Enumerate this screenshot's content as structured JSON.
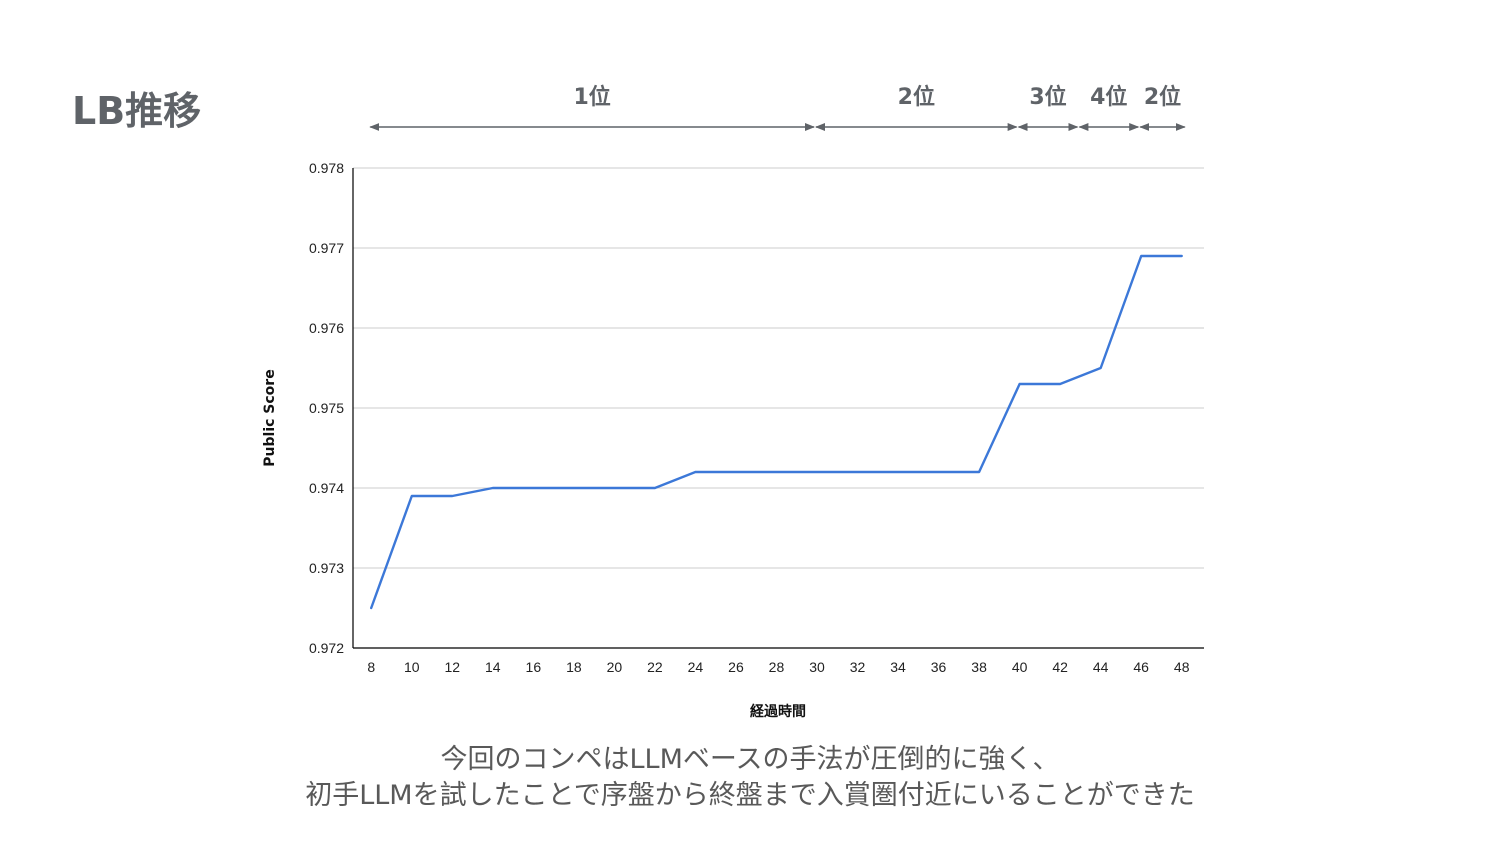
{
  "slide": {
    "title": "LB推移",
    "caption_line1": "今回のコンペはLLMベースの手法が圧倒的に強く、",
    "caption_line2": "初手LLMを試したことで序盤から終盤まで入賞圏付近にいることができた"
  },
  "rank_annotations": [
    {
      "label": "1位",
      "start": 8,
      "end": 30
    },
    {
      "label": "2位",
      "start": 30,
      "end": 40
    },
    {
      "label": "3位",
      "start": 40,
      "end": 43
    },
    {
      "label": "4位",
      "start": 43,
      "end": 46
    },
    {
      "label": "2位",
      "start": 46,
      "end": 48.3
    }
  ],
  "chart_data": {
    "type": "line",
    "title": "",
    "xlabel": "経過時間",
    "ylabel": "Public Score",
    "x": [
      8,
      10,
      12,
      14,
      16,
      18,
      20,
      22,
      24,
      26,
      28,
      30,
      32,
      34,
      36,
      38,
      40,
      42,
      44,
      46,
      48
    ],
    "series": [
      {
        "values": [
          0.9725,
          0.9739,
          0.9739,
          0.974,
          0.974,
          0.974,
          0.974,
          0.974,
          0.9742,
          0.9742,
          0.9742,
          0.9742,
          0.9742,
          0.9742,
          0.9742,
          0.9742,
          0.9753,
          0.9753,
          0.9755,
          0.9769,
          0.9769
        ],
        "color": "#3c78d8"
      }
    ],
    "xticks": [
      "8",
      "10",
      "12",
      "14",
      "16",
      "18",
      "20",
      "22",
      "24",
      "26",
      "28",
      "30",
      "32",
      "34",
      "36",
      "38",
      "40",
      "42",
      "44",
      "46",
      "48"
    ],
    "yticks": [
      "0.972",
      "0.973",
      "0.974",
      "0.975",
      "0.976",
      "0.977",
      "0.978"
    ],
    "xlim": [
      7.1,
      49.1
    ],
    "ylim": [
      0.972,
      0.978
    ],
    "grid": true,
    "legend": "none"
  },
  "colors": {
    "line": "#3c78d8",
    "gridline": "#cccccc",
    "axis": "#000000",
    "annotation": "#5f6368",
    "title": "#5f6368",
    "caption": "#595959"
  }
}
